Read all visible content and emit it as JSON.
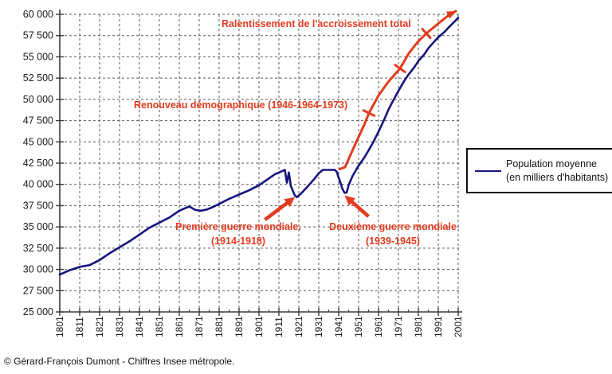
{
  "colors": {
    "series_line": "#15157e",
    "annotation_red": "#e23b1e",
    "grid": "#595959",
    "axis": "#3a3a3a",
    "label_text": "#1a1a1a",
    "background": "#ffffff"
  },
  "legend": {
    "line1": "Population moyenne",
    "line2": "(en milliers d'habitants)"
  },
  "footer": {
    "credit": "© Gérard-François Dumont - Chiffres Insee métropole."
  },
  "chart_data": {
    "type": "line",
    "title": "",
    "xlabel": "",
    "ylabel": "",
    "xlim": [
      1801,
      2001
    ],
    "ylim": [
      25000,
      60000
    ],
    "grid": "dashed-both",
    "legend_position": "right",
    "x_ticks": [
      1801,
      1811,
      1821,
      1831,
      1841,
      1851,
      1861,
      1871,
      1881,
      1891,
      1901,
      1911,
      1921,
      1931,
      1941,
      1951,
      1961,
      1971,
      1981,
      1991,
      2001
    ],
    "y_ticks": [
      25000,
      27500,
      30000,
      32500,
      35000,
      37500,
      40000,
      42500,
      45000,
      47500,
      50000,
      52500,
      55000,
      57500,
      60000
    ],
    "series": [
      {
        "name": "Population moyenne (en milliers d'habitants)",
        "points": [
          [
            1801,
            29400
          ],
          [
            1806,
            29900
          ],
          [
            1811,
            30300
          ],
          [
            1816,
            30500
          ],
          [
            1821,
            31100
          ],
          [
            1826,
            31900
          ],
          [
            1831,
            32600
          ],
          [
            1836,
            33300
          ],
          [
            1841,
            34100
          ],
          [
            1846,
            34900
          ],
          [
            1851,
            35500
          ],
          [
            1856,
            36100
          ],
          [
            1861,
            36900
          ],
          [
            1864,
            37200
          ],
          [
            1866,
            37400
          ],
          [
            1869,
            37000
          ],
          [
            1872,
            36900
          ],
          [
            1875,
            37050
          ],
          [
            1878,
            37350
          ],
          [
            1881,
            37700
          ],
          [
            1886,
            38300
          ],
          [
            1891,
            38800
          ],
          [
            1896,
            39300
          ],
          [
            1901,
            39900
          ],
          [
            1906,
            40700
          ],
          [
            1909,
            41200
          ],
          [
            1911,
            41400
          ],
          [
            1913,
            41600
          ],
          [
            1914,
            41700
          ],
          [
            1915,
            40200
          ],
          [
            1916,
            41400
          ],
          [
            1917,
            39800
          ],
          [
            1919,
            38700
          ],
          [
            1920,
            38500
          ],
          [
            1922,
            38900
          ],
          [
            1926,
            39900
          ],
          [
            1929,
            40700
          ],
          [
            1931,
            41300
          ],
          [
            1933,
            41700
          ],
          [
            1936,
            41700
          ],
          [
            1939,
            41700
          ],
          [
            1940,
            41500
          ],
          [
            1941,
            40800
          ],
          [
            1943,
            39400
          ],
          [
            1944,
            39000
          ],
          [
            1945,
            39050
          ],
          [
            1946,
            39900
          ],
          [
            1948,
            41000
          ],
          [
            1951,
            42200
          ],
          [
            1954,
            43200
          ],
          [
            1956,
            44000
          ],
          [
            1958,
            44800
          ],
          [
            1961,
            46200
          ],
          [
            1964,
            47700
          ],
          [
            1966,
            48800
          ],
          [
            1968,
            49700
          ],
          [
            1971,
            51000
          ],
          [
            1974,
            52200
          ],
          [
            1976,
            52900
          ],
          [
            1979,
            53800
          ],
          [
            1981,
            54500
          ],
          [
            1984,
            55300
          ],
          [
            1986,
            56000
          ],
          [
            1989,
            56800
          ],
          [
            1991,
            57300
          ],
          [
            1994,
            57900
          ],
          [
            1996,
            58400
          ],
          [
            1999,
            59100
          ],
          [
            2001,
            59600
          ]
        ]
      }
    ],
    "annotations": [
      {
        "id": "ralentissement",
        "text": "Ralentissement de l'accroissement total"
      },
      {
        "id": "renouveau",
        "text": "Renouveau démographique (1946-1964-1973)"
      },
      {
        "id": "ww1",
        "line1": "Première guerre mondiale.",
        "line2": "(1914-1918)"
      },
      {
        "id": "ww2",
        "line1": "Deuxième guerre mondiale",
        "line2": "(1939-1945)"
      }
    ],
    "pointer_arrows": [
      {
        "name": "ww1-arrow",
        "from": [
          1904,
          35850
        ],
        "to": [
          1919,
          38500
        ]
      },
      {
        "name": "ww2-arrow",
        "from": [
          1956,
          36230
        ],
        "to": [
          1944,
          38700
        ]
      }
    ],
    "growth_curve": {
      "points": [
        [
          1941.5,
          41800
        ],
        [
          1944.2,
          42030
        ],
        [
          1949,
          44560
        ],
        [
          1953.8,
          46990
        ],
        [
          1956.2,
          48390
        ],
        [
          1961,
          50450
        ],
        [
          1965.8,
          52040
        ],
        [
          1971.8,
          53630
        ],
        [
          1976.2,
          55410
        ],
        [
          1980.6,
          56720
        ],
        [
          1985,
          57750
        ],
        [
          1992.2,
          59150
        ],
        [
          1997.4,
          60090
        ],
        [
          1999.8,
          60370
        ]
      ],
      "tick_mark_indices": [
        4,
        7,
        10
      ],
      "arrow_at_end": true
    }
  }
}
